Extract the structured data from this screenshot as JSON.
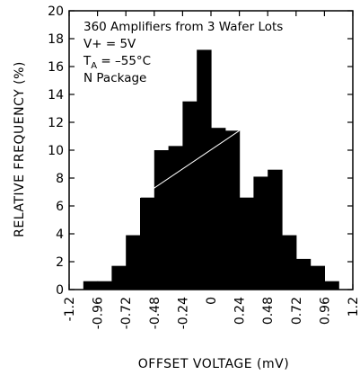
{
  "chart_data": {
    "type": "bar",
    "title": "",
    "xlabel": "OFFSET VOLTAGE (mV)",
    "ylabel": "RELATIVE FREQUENCY (%)",
    "xlim": [
      -1.2,
      1.2
    ],
    "ylim": [
      0,
      20
    ],
    "xticks": [
      "-1.2",
      "-0.96",
      "-0.72",
      "-0.48",
      "-0.24",
      "0",
      "0.24",
      "0.48",
      "0.72",
      "0.96",
      "1.2"
    ],
    "yticks": [
      "0",
      "2",
      "4",
      "6",
      "8",
      "10",
      "12",
      "14",
      "16",
      "18",
      "20"
    ],
    "bin_width": 0.12,
    "bin_starts": [
      -1.08,
      -0.96,
      -0.84,
      -0.72,
      -0.6,
      -0.48,
      -0.36,
      -0.24,
      -0.12,
      0.0,
      0.12,
      0.24,
      0.36,
      0.48,
      0.6,
      0.72,
      0.84,
      0.96
    ],
    "values": [
      0.6,
      0.6,
      1.7,
      3.9,
      6.6,
      10.0,
      10.3,
      13.5,
      17.2,
      11.6,
      11.4,
      6.6,
      8.1,
      8.6,
      3.9,
      2.2,
      1.7,
      0.6
    ],
    "annotations": [
      "360 Amplifiers from 3 Wafer Lots",
      "V+ = 5V",
      "T",
      "A",
      " = –55°C",
      "N Package"
    ],
    "grid": false,
    "bar_color": "#000000"
  }
}
